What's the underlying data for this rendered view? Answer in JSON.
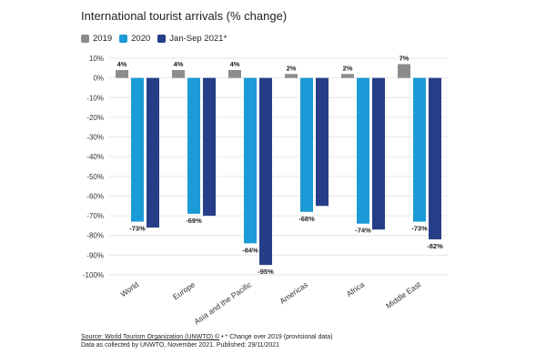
{
  "title": "International tourist arrivals (% change)",
  "legend": [
    {
      "label": "2019",
      "color": "#8c8c8c"
    },
    {
      "label": "2020",
      "color": "#1a9bd7"
    },
    {
      "label": "Jan-Sep 2021*",
      "color": "#263e87"
    }
  ],
  "footer": {
    "source": "Source: World Tourism Organization (UNWTO) ©",
    "note": " • * Change over 2019 (provisional data)",
    "line2": "Data as collected by UNWTO, November 2021. Published: 29/11/2021"
  },
  "chart_data": {
    "type": "bar",
    "categories": [
      "World",
      "Europe",
      "Asia and the Pacific",
      "Americas",
      "Africa",
      "Middle East"
    ],
    "series": [
      {
        "name": "2019",
        "color": "#8c8c8c",
        "values": [
          4,
          4,
          4,
          2,
          2,
          7
        ],
        "labels": [
          "4%",
          "4%",
          "4%",
          "2%",
          "2%",
          "7%"
        ]
      },
      {
        "name": "2020",
        "color": "#1a9bd7",
        "values": [
          -73,
          -69,
          -84,
          -68,
          -74,
          -73
        ],
        "labels": [
          "-73%",
          "-69%",
          "-84%",
          "-68%",
          "-74%",
          "-73%"
        ]
      },
      {
        "name": "Jan-Sep 2021*",
        "color": "#263e87",
        "values": [
          -76,
          -70,
          -95,
          -65,
          -77,
          -82
        ],
        "labels": [
          "",
          "",
          "-95%",
          "",
          "",
          "-82%"
        ]
      }
    ],
    "ylim": [
      -100,
      10
    ],
    "yticks": [
      10,
      0,
      -10,
      -20,
      -30,
      -40,
      -50,
      -60,
      -70,
      -80,
      -90,
      -100
    ],
    "ytick_labels": [
      "10%",
      "0%",
      "-10%",
      "-20%",
      "-30%",
      "-40%",
      "-50%",
      "-60%",
      "-70%",
      "-80%",
      "-90%",
      "-100%"
    ],
    "grid": true,
    "legend_position": "top-left"
  }
}
